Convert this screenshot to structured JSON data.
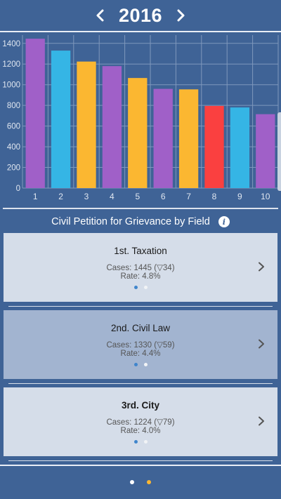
{
  "header": {
    "year": "2016",
    "prev_icon": "chevron-left-icon",
    "next_icon": "chevron-right-icon"
  },
  "chart_data": {
    "type": "bar",
    "categories": [
      "1",
      "2",
      "3",
      "4",
      "5",
      "6",
      "7",
      "8",
      "9",
      "10"
    ],
    "values": [
      1445,
      1330,
      1224,
      1180,
      1065,
      960,
      955,
      795,
      780,
      715
    ],
    "colors": [
      "#a060c8",
      "#35b5e5",
      "#fbb731",
      "#a060c8",
      "#fbb731",
      "#a060c8",
      "#fbb731",
      "#fa4040",
      "#35b5e5",
      "#a060c8"
    ],
    "yticks": [
      "0",
      "200",
      "400",
      "600",
      "800",
      "1000",
      "1200",
      "1400"
    ],
    "ylim": [
      0,
      1480
    ],
    "grid": true
  },
  "section": {
    "title": "Civil Petition for Grievance by Field",
    "info_icon": "info-icon"
  },
  "cards": [
    {
      "rank": "1st. Taxation",
      "cases": "Cases: 1445 (▽34)",
      "rate": "Rate: 4.8%",
      "active": false,
      "bold": false
    },
    {
      "rank": "2nd. Civil Law",
      "cases": "Cases: 1330 (▽59)",
      "rate": "Rate: 4.4%",
      "active": true,
      "bold": false
    },
    {
      "rank": "3rd. City",
      "cases": "Cases: 1224 (▽79)",
      "rate": "Rate: 4.0%",
      "active": false,
      "bold": true
    }
  ],
  "pager": {
    "dot_colors": [
      "#ffffff",
      "#fbb731"
    ]
  }
}
